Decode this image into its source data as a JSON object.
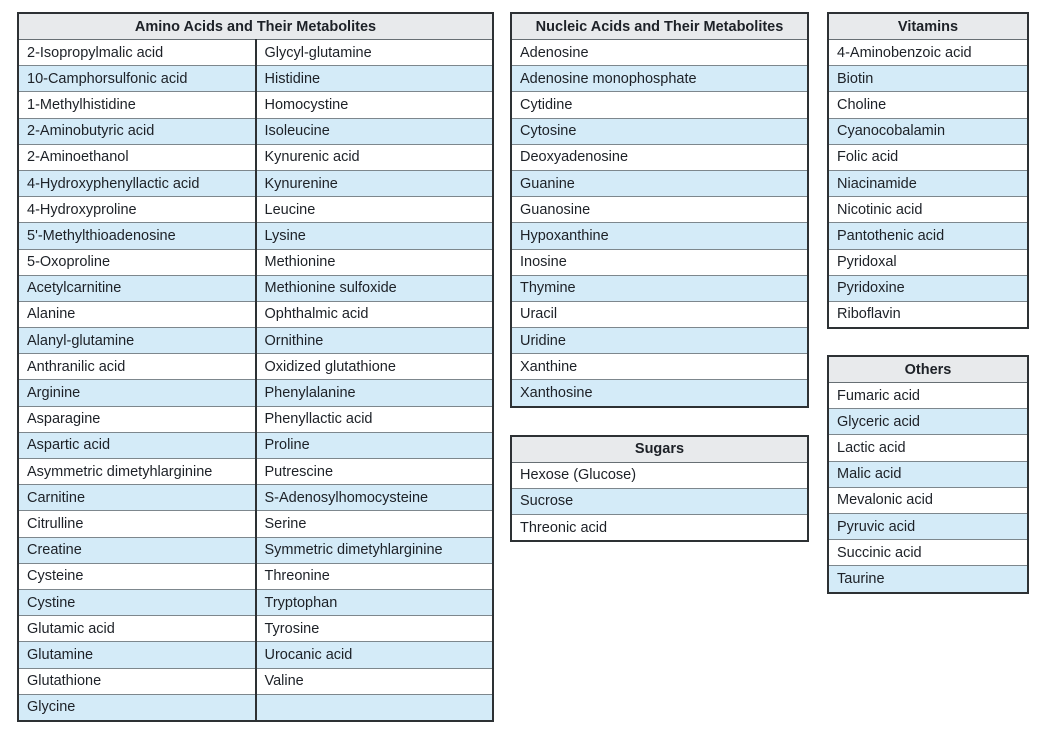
{
  "colors": {
    "row_highlight": "#d4ebf8",
    "header_background": "#e8eaec",
    "outer_border": "#2d3134",
    "row_border": "#7d878d",
    "text": "#1d2127"
  },
  "tables": [
    {
      "id": "amino-acids",
      "title": "Amino Acids and Their Metabolites",
      "columns": 2,
      "rows": [
        [
          "2-Isopropylmalic acid",
          "Glycyl-glutamine"
        ],
        [
          "10-Camphorsulfonic acid",
          "Histidine"
        ],
        [
          "1-Methylhistidine",
          "Homocystine"
        ],
        [
          "2-Aminobutyric acid",
          "Isoleucine"
        ],
        [
          "2-Aminoethanol",
          "Kynurenic acid"
        ],
        [
          "4-Hydroxyphenyllactic acid",
          "Kynurenine"
        ],
        [
          "4-Hydroxyproline",
          "Leucine"
        ],
        [
          "5'-Methylthioadenosine",
          "Lysine"
        ],
        [
          "5-Oxoproline",
          "Methionine"
        ],
        [
          "Acetylcarnitine",
          "Methionine sulfoxide"
        ],
        [
          "Alanine",
          "Ophthalmic acid"
        ],
        [
          "Alanyl-glutamine",
          "Ornithine"
        ],
        [
          "Anthranilic acid",
          "Oxidized glutathione"
        ],
        [
          "Arginine",
          "Phenylalanine"
        ],
        [
          "Asparagine",
          "Phenyllactic acid"
        ],
        [
          "Aspartic acid",
          "Proline"
        ],
        [
          "Asymmetric dimetyhlarginine",
          "Putrescine"
        ],
        [
          "Carnitine",
          "S-Adenosylhomocysteine"
        ],
        [
          "Citrulline",
          "Serine"
        ],
        [
          "Creatine",
          "Symmetric dimetyhlarginine"
        ],
        [
          "Cysteine",
          "Threonine"
        ],
        [
          "Cystine",
          "Tryptophan"
        ],
        [
          "Glutamic acid",
          "Tyrosine"
        ],
        [
          "Glutamine",
          "Urocanic acid"
        ],
        [
          "Glutathione",
          "Valine"
        ],
        [
          "Glycine",
          ""
        ]
      ]
    },
    {
      "id": "nucleic-acids",
      "title": "Nucleic Acids and Their Metabolites",
      "columns": 1,
      "rows": [
        [
          "Adenosine"
        ],
        [
          "Adenosine monophosphate"
        ],
        [
          "Cytidine"
        ],
        [
          "Cytosine"
        ],
        [
          "Deoxyadenosine"
        ],
        [
          "Guanine"
        ],
        [
          "Guanosine"
        ],
        [
          "Hypoxanthine"
        ],
        [
          "Inosine"
        ],
        [
          "Thymine"
        ],
        [
          "Uracil"
        ],
        [
          "Uridine"
        ],
        [
          "Xanthine"
        ],
        [
          "Xanthosine"
        ]
      ]
    },
    {
      "id": "sugars",
      "title": "Sugars",
      "columns": 1,
      "rows": [
        [
          "Hexose (Glucose)"
        ],
        [
          "Sucrose"
        ],
        [
          "Threonic acid"
        ]
      ]
    },
    {
      "id": "vitamins",
      "title": "Vitamins",
      "columns": 1,
      "rows": [
        [
          "4-Aminobenzoic acid"
        ],
        [
          "Biotin"
        ],
        [
          "Choline"
        ],
        [
          "Cyanocobalamin"
        ],
        [
          "Folic acid"
        ],
        [
          "Niacinamide"
        ],
        [
          "Nicotinic acid"
        ],
        [
          "Pantothenic acid"
        ],
        [
          "Pyridoxal"
        ],
        [
          "Pyridoxine"
        ],
        [
          "Riboflavin"
        ]
      ]
    },
    {
      "id": "others",
      "title": "Others",
      "columns": 1,
      "rows": [
        [
          "Fumaric acid"
        ],
        [
          "Glyceric acid"
        ],
        [
          "Lactic acid"
        ],
        [
          "Malic acid"
        ],
        [
          "Mevalonic acid"
        ],
        [
          "Pyruvic acid"
        ],
        [
          "Succinic acid"
        ],
        [
          "Taurine"
        ]
      ]
    }
  ]
}
